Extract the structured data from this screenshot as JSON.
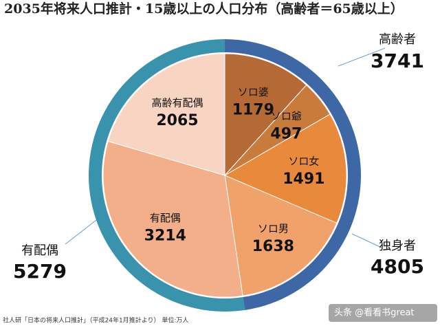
{
  "chart_data": {
    "type": "pie",
    "title": "2035年将来人口推計・15歳以上の人口分布（高齢者＝65歳以上）",
    "inner": {
      "categories": [
        "ソロ婆",
        "ソロ爺",
        "ソロ女",
        "ソロ男",
        "有配偶",
        "高齢有配偶"
      ],
      "values": [
        1179,
        497,
        1491,
        1638,
        3214,
        2065
      ],
      "colors": [
        "#b56a35",
        "#c97b3c",
        "#e8893c",
        "#f1a26a",
        "#f3ae8a",
        "#f8d4c2"
      ]
    },
    "outer": {
      "categories": [
        "独身者",
        "有配偶"
      ],
      "values": [
        4805,
        5279
      ],
      "colors": [
        "#3e67a6",
        "#3a93ad"
      ]
    },
    "annotations": [
      {
        "label": "高齢者",
        "value": 3741
      }
    ],
    "source": "社人研「日本の将来人口推計」（平成24年1月推計より） 単位:万人",
    "watermark": "头条 @看看书great"
  }
}
